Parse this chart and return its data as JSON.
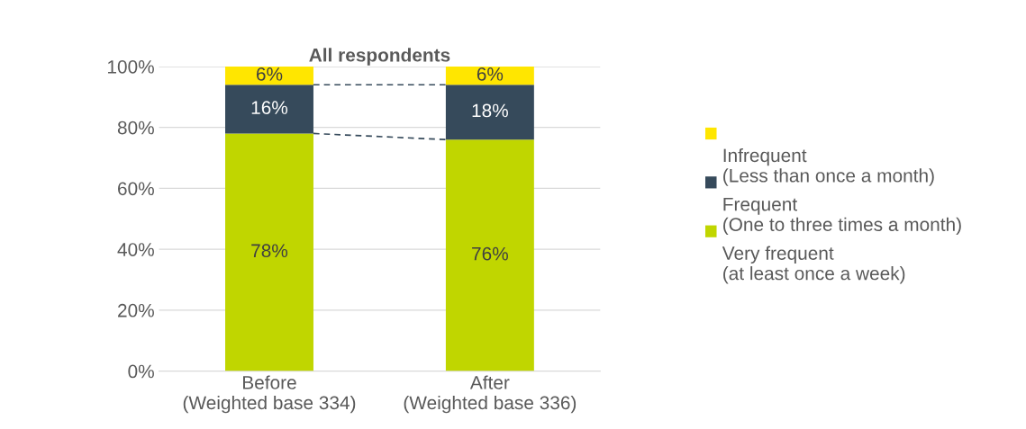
{
  "chart_data": {
    "type": "bar",
    "stacked": true,
    "title": "All respondents",
    "categories": [
      "Before\n(Weighted base 334)",
      "After\n(Weighted base 336)"
    ],
    "series": [
      {
        "name": "Very frequent\n(at least once a week)",
        "color": "#c0d600",
        "values": [
          78,
          76
        ],
        "value_labels": [
          "78%",
          "76%"
        ]
      },
      {
        "name": "Frequent\n(One to three times a month)",
        "color": "#364a5b",
        "values": [
          16,
          18
        ],
        "value_labels": [
          "16%",
          "18%"
        ]
      },
      {
        "name": "Infrequent\n(Less than once a month)",
        "color": "#ffe600",
        "values": [
          6,
          6
        ],
        "value_labels": [
          "6%",
          "6%"
        ]
      }
    ],
    "ylim": [
      0,
      100
    ],
    "yticks": [
      {
        "value": 0,
        "label": "0%"
      },
      {
        "value": 20,
        "label": "20%"
      },
      {
        "value": 40,
        "label": "40%"
      },
      {
        "value": 60,
        "label": "60%"
      },
      {
        "value": 80,
        "label": "80%"
      },
      {
        "value": 100,
        "label": "100%"
      }
    ],
    "grid": "y",
    "legend": "right"
  }
}
